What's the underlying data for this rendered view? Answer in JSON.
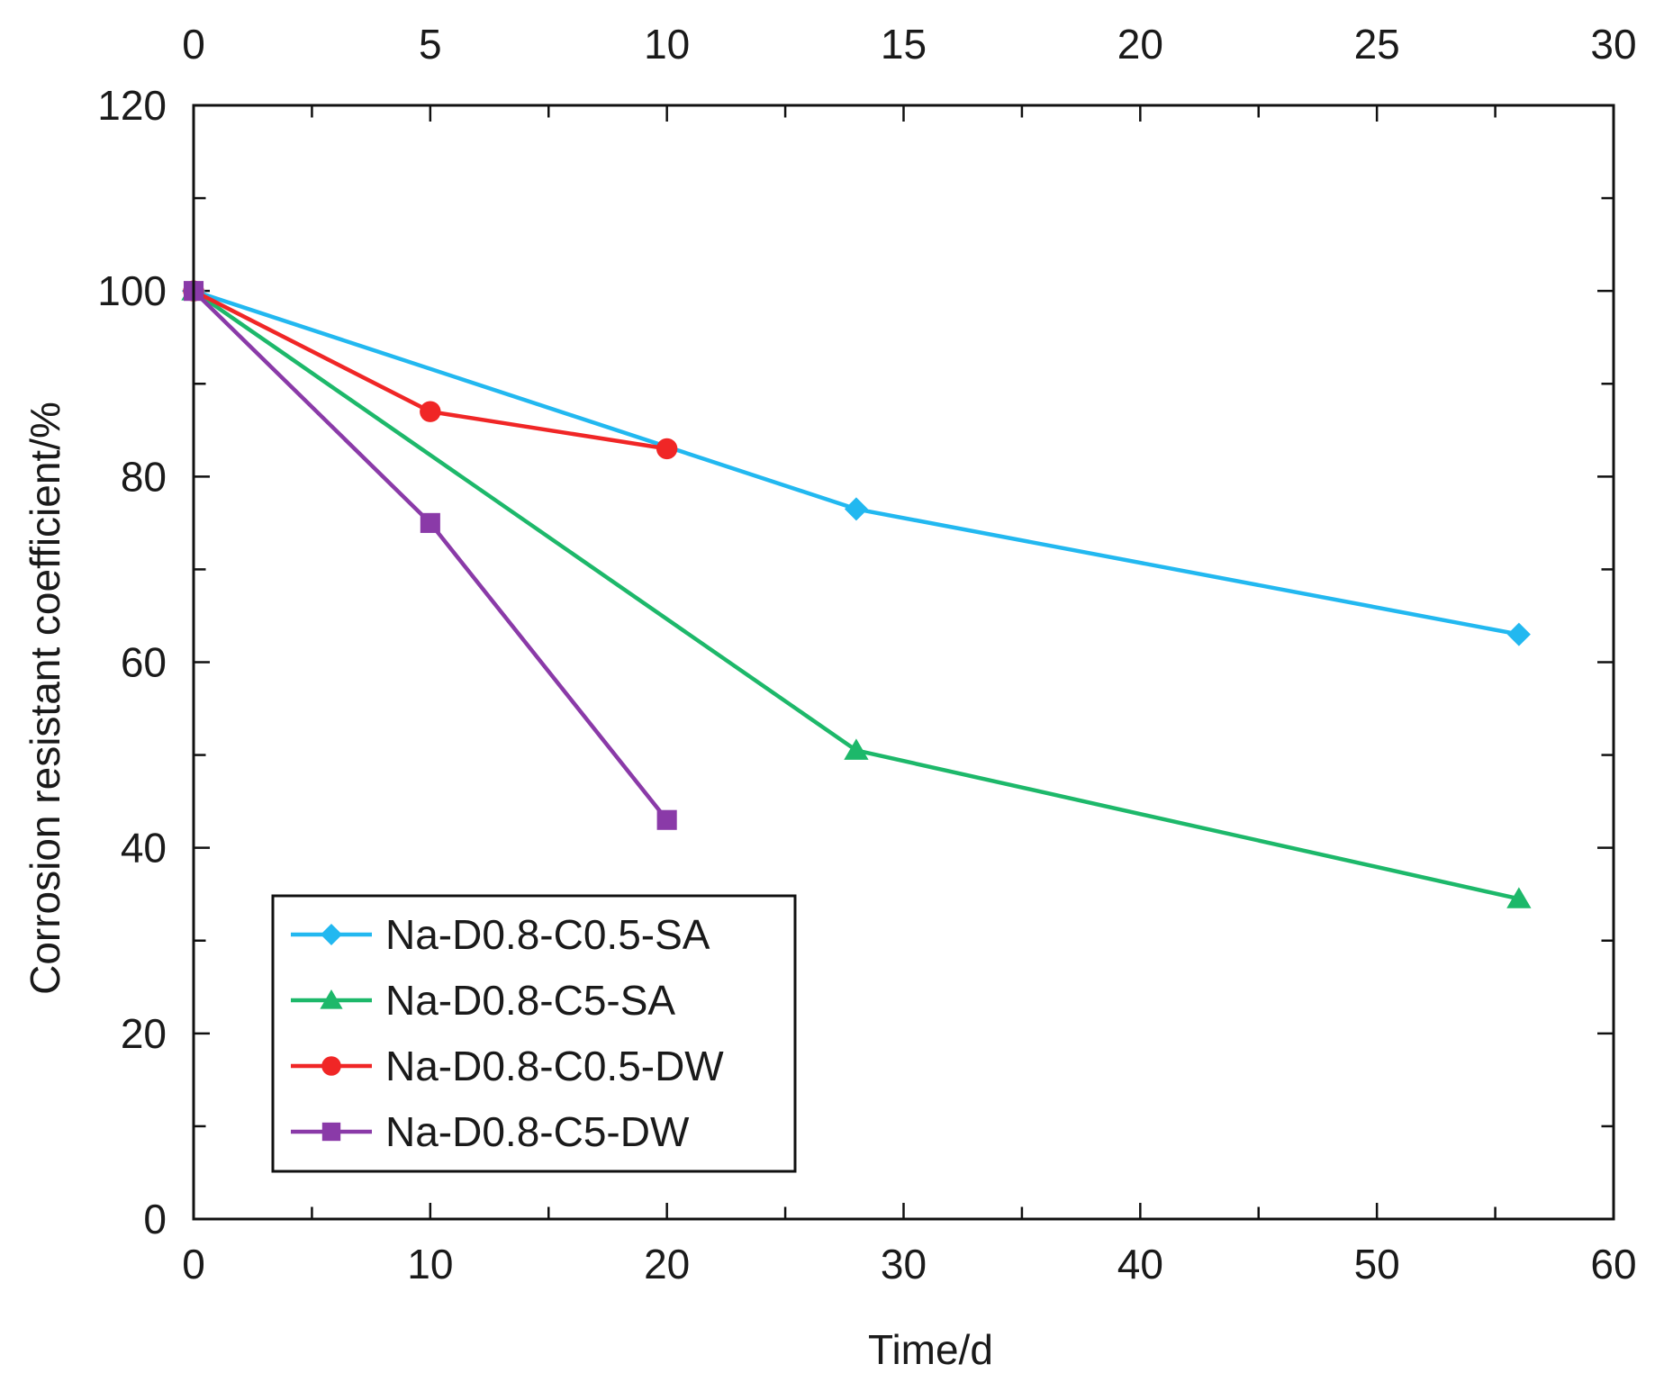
{
  "chart_data": {
    "type": "line",
    "title": "",
    "xlabel": "Time/d",
    "ylabel": "Corrosion resistant coefficient/%",
    "xlim": [
      0,
      60
    ],
    "ylim": [
      0,
      120
    ],
    "x_ticks": [
      0,
      10,
      20,
      30,
      40,
      50,
      60
    ],
    "x_tick_labels": [
      "0",
      "10",
      "20",
      "30",
      "40",
      "50",
      "60"
    ],
    "x_top_tick_labels": [
      "0",
      "5",
      "10",
      "15",
      "20",
      "25",
      "30"
    ],
    "y_ticks": [
      0,
      20,
      40,
      60,
      80,
      100,
      120
    ],
    "y_tick_labels": [
      "0",
      "20",
      "40",
      "60",
      "80",
      "100",
      "120"
    ],
    "grid": false,
    "legend_position": "bottom-left",
    "series": [
      {
        "name": "Na-D0.8-C0.5-SA",
        "color": "#22b8f0",
        "marker": "diamond",
        "x": [
          0,
          28,
          56
        ],
        "y": [
          100,
          76.5,
          63
        ]
      },
      {
        "name": "Na-D0.8-C5-SA",
        "color": "#1db86a",
        "marker": "triangle",
        "x": [
          0,
          28,
          56
        ],
        "y": [
          100,
          50.5,
          34.5
        ]
      },
      {
        "name": "Na-D0.8-C0.5-DW",
        "color": "#f02626",
        "marker": "circle",
        "x": [
          0,
          10,
          20
        ],
        "y": [
          100,
          87,
          83
        ]
      },
      {
        "name": "Na-D0.8-C5-DW",
        "color": "#8a3aa8",
        "marker": "square",
        "x": [
          0,
          10,
          20
        ],
        "y": [
          100,
          75,
          43
        ]
      }
    ]
  }
}
